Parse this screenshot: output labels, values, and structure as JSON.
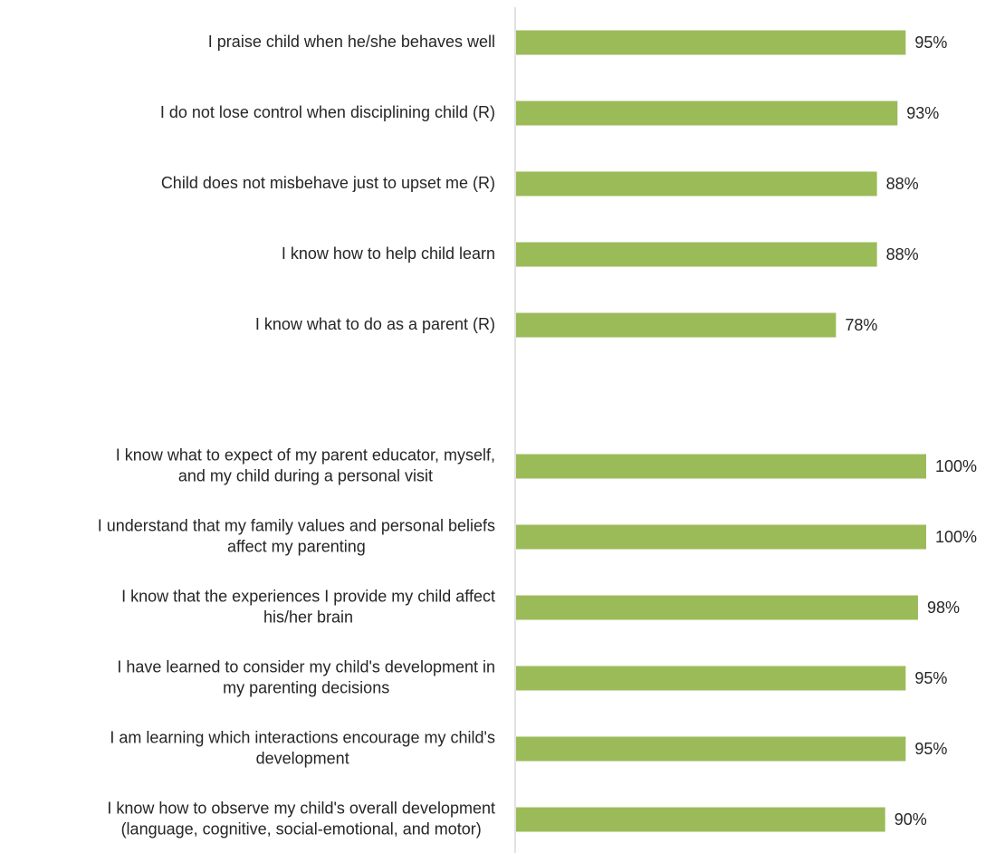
{
  "chart_data": {
    "type": "bar",
    "orientation": "horizontal",
    "xlim": [
      0,
      100
    ],
    "bar_color": "#9BBB59",
    "axis_color": "#D9D9D9",
    "text_color": "#262626",
    "grid": false,
    "groups": [
      {
        "categories": [
          "I praise child when he/she behaves well",
          "I do not lose control when disciplining child (R)",
          "Child does not misbehave just to upset me (R)",
          "I know how to help child learn",
          "I know what to do as a parent (R)"
        ],
        "values": [
          95,
          93,
          88,
          88,
          78
        ],
        "value_labels": [
          "95%",
          "93%",
          "88%",
          "88%",
          "78%"
        ]
      },
      {
        "categories": [
          [
            "I know what to expect of my parent educator, myself,",
            "and my child during a personal visit"
          ],
          [
            "I understand that my family values and personal beliefs",
            "affect my parenting"
          ],
          [
            "I know that the experiences I provide my child affect",
            "his/her brain"
          ],
          [
            "I have learned to consider my child's development in",
            "my parenting decisions"
          ],
          [
            "I am learning which interactions encourage my child's",
            "development"
          ],
          [
            "I know how to observe my child's overall development",
            "(language, cognitive, social-emotional, and motor)"
          ]
        ],
        "values": [
          100,
          100,
          98,
          95,
          95,
          90
        ],
        "value_labels": [
          "100%",
          "100%",
          "98%",
          "95%",
          "95%",
          "90%"
        ]
      }
    ]
  }
}
